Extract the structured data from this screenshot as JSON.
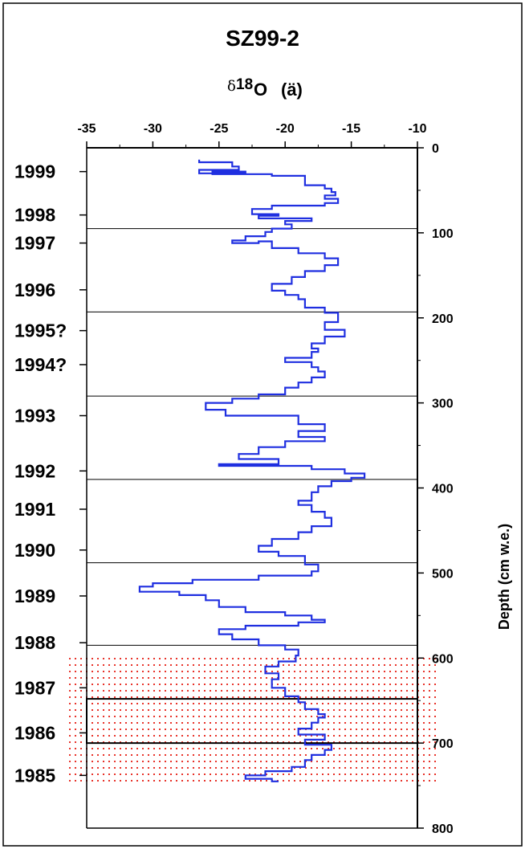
{
  "chart_data": {
    "type": "line",
    "title": "SZ99-2",
    "xlabel_delta": "δ",
    "xlabel_main": "18",
    "xlabel_o": "O",
    "xlabel_unit": "(ä)",
    "ylabel": "Depth (cm w.e.)",
    "xlim": [
      -35,
      -10
    ],
    "ylim": [
      0,
      800
    ],
    "x_ticks": [
      "-35",
      "-30",
      "-25",
      "-20",
      "-15",
      "-10"
    ],
    "y_ticks": [
      "0",
      "100",
      "200",
      "300",
      "400",
      "500",
      "600",
      "700",
      "800"
    ],
    "year_boundaries_depth": [
      95,
      193,
      292,
      390,
      488,
      585
    ],
    "year_labels": [
      {
        "label": "1999",
        "depth": 28
      },
      {
        "label": "1998",
        "depth": 79
      },
      {
        "label": "1997",
        "depth": 112
      },
      {
        "label": "1996",
        "depth": 167
      },
      {
        "label": "1995?",
        "depth": 215
      },
      {
        "label": "1994?",
        "depth": 255
      },
      {
        "label": "1993",
        "depth": 315
      },
      {
        "label": "1992",
        "depth": 380
      },
      {
        "label": "1991",
        "depth": 425
      },
      {
        "label": "1990",
        "depth": 473
      },
      {
        "label": "1989",
        "depth": 527
      },
      {
        "label": "1988",
        "depth": 582
      },
      {
        "label": "1987",
        "depth": 635
      },
      {
        "label": "1986",
        "depth": 688
      },
      {
        "label": "1985",
        "depth": 738
      }
    ],
    "highlight_region_depth": [
      595,
      750
    ],
    "box_region_depth": [
      648,
      700
    ],
    "colors": {
      "series": "#1f2fe0",
      "highlight": "#e8332a",
      "lines": "#000000"
    },
    "series": [
      {
        "points": [
          [
            -26.5,
            14
          ],
          [
            -26.5,
            17
          ],
          [
            -24,
            17
          ],
          [
            -24,
            22
          ],
          [
            -23.5,
            22
          ],
          [
            -23.5,
            26
          ],
          [
            -26.5,
            26
          ],
          [
            -26.5,
            30
          ],
          [
            -23,
            30
          ],
          [
            -23,
            28
          ],
          [
            -25.5,
            28
          ],
          [
            -25.5,
            31
          ],
          [
            -21,
            31
          ],
          [
            -21,
            33
          ],
          [
            -18.5,
            33
          ],
          [
            -18.5,
            44
          ],
          [
            -17,
            44
          ],
          [
            -17,
            48
          ],
          [
            -16.5,
            48
          ],
          [
            -16.5,
            52
          ],
          [
            -16.2,
            52
          ],
          [
            -16.2,
            56
          ],
          [
            -17,
            56
          ],
          [
            -17,
            60
          ],
          [
            -16,
            60
          ],
          [
            -16,
            65
          ],
          [
            -17,
            65
          ],
          [
            -17,
            68
          ],
          [
            -21,
            68
          ],
          [
            -21,
            72
          ],
          [
            -22.5,
            72
          ],
          [
            -22.5,
            78
          ],
          [
            -20.5,
            78
          ],
          [
            -20.5,
            80
          ],
          [
            -22,
            80
          ],
          [
            -22,
            83
          ],
          [
            -18,
            83
          ],
          [
            -18,
            86
          ],
          [
            -20,
            86
          ],
          [
            -20,
            90
          ],
          [
            -19.5,
            90
          ],
          [
            -19.5,
            95
          ],
          [
            -21,
            95
          ],
          [
            -21,
            99
          ],
          [
            -21.5,
            99
          ],
          [
            -21.5,
            104
          ],
          [
            -23,
            104
          ],
          [
            -23,
            109
          ],
          [
            -24,
            109
          ],
          [
            -24,
            112
          ],
          [
            -22,
            112
          ],
          [
            -22,
            110
          ],
          [
            -21,
            110
          ],
          [
            -21,
            118
          ],
          [
            -19,
            118
          ],
          [
            -19,
            124
          ],
          [
            -17,
            124
          ],
          [
            -17,
            130
          ],
          [
            -16,
            130
          ],
          [
            -16,
            138
          ],
          [
            -17,
            138
          ],
          [
            -17,
            145
          ],
          [
            -18.5,
            145
          ],
          [
            -18.5,
            152
          ],
          [
            -19.5,
            152
          ],
          [
            -19.5,
            160
          ],
          [
            -21,
            160
          ],
          [
            -21,
            168
          ],
          [
            -20,
            168
          ],
          [
            -20,
            173
          ],
          [
            -19,
            173
          ],
          [
            -19,
            178
          ],
          [
            -18.5,
            178
          ],
          [
            -18.5,
            188
          ],
          [
            -17,
            188
          ],
          [
            -17,
            194
          ],
          [
            -16,
            194
          ],
          [
            -16,
            205
          ],
          [
            -17,
            205
          ],
          [
            -17,
            214
          ],
          [
            -15.5,
            214
          ],
          [
            -15.5,
            222
          ],
          [
            -17,
            222
          ],
          [
            -17,
            230
          ],
          [
            -18,
            230
          ],
          [
            -18,
            236
          ],
          [
            -17.5,
            236
          ],
          [
            -17.5,
            240
          ],
          [
            -18,
            240
          ],
          [
            -18,
            247
          ],
          [
            -20,
            247
          ],
          [
            -20,
            252
          ],
          [
            -18,
            252
          ],
          [
            -18,
            258
          ],
          [
            -17.5,
            258
          ],
          [
            -17.5,
            263
          ],
          [
            -17,
            263
          ],
          [
            -17,
            270
          ],
          [
            -18,
            270
          ],
          [
            -18,
            276
          ],
          [
            -19,
            276
          ],
          [
            -19,
            282
          ],
          [
            -20,
            282
          ],
          [
            -20,
            290
          ],
          [
            -22,
            290
          ],
          [
            -22,
            295
          ],
          [
            -24,
            295
          ],
          [
            -24,
            300
          ],
          [
            -26,
            300
          ],
          [
            -26,
            308
          ],
          [
            -24.5,
            308
          ],
          [
            -24.5,
            315
          ],
          [
            -19,
            315
          ],
          [
            -19,
            325
          ],
          [
            -17,
            325
          ],
          [
            -17,
            333
          ],
          [
            -19,
            333
          ],
          [
            -19,
            340
          ],
          [
            -17,
            340
          ],
          [
            -17,
            345
          ],
          [
            -20,
            345
          ],
          [
            -20,
            352
          ],
          [
            -22,
            352
          ],
          [
            -22,
            360
          ],
          [
            -23.5,
            360
          ],
          [
            -23.5,
            366
          ],
          [
            -20.5,
            366
          ],
          [
            -20.5,
            372
          ],
          [
            -25,
            372
          ],
          [
            -25,
            374
          ],
          [
            -18,
            374
          ],
          [
            -18,
            378
          ],
          [
            -15.5,
            378
          ],
          [
            -15.5,
            383
          ],
          [
            -14,
            383
          ],
          [
            -14,
            388
          ],
          [
            -15,
            388
          ],
          [
            -15,
            392
          ],
          [
            -16.5,
            392
          ],
          [
            -16.5,
            398
          ],
          [
            -17.5,
            398
          ],
          [
            -17.5,
            405
          ],
          [
            -18,
            405
          ],
          [
            -18,
            415
          ],
          [
            -19,
            415
          ],
          [
            -19,
            420
          ],
          [
            -18,
            420
          ],
          [
            -18,
            428
          ],
          [
            -17,
            428
          ],
          [
            -17,
            435
          ],
          [
            -16.5,
            435
          ],
          [
            -16.5,
            445
          ],
          [
            -18,
            445
          ],
          [
            -18,
            452
          ],
          [
            -19,
            452
          ],
          [
            -19,
            460
          ],
          [
            -21,
            460
          ],
          [
            -21,
            468
          ],
          [
            -22,
            468
          ],
          [
            -22,
            475
          ],
          [
            -20.5,
            475
          ],
          [
            -20.5,
            480
          ],
          [
            -18.5,
            480
          ],
          [
            -18.5,
            490
          ],
          [
            -17.5,
            490
          ],
          [
            -17.5,
            498
          ],
          [
            -18,
            498
          ],
          [
            -18,
            503
          ],
          [
            -22,
            503
          ],
          [
            -22,
            508
          ],
          [
            -27,
            508
          ],
          [
            -27,
            512
          ],
          [
            -30,
            512
          ],
          [
            -30,
            516
          ],
          [
            -31,
            516
          ],
          [
            -31,
            522
          ],
          [
            -28,
            522
          ],
          [
            -28,
            526
          ],
          [
            -26,
            526
          ],
          [
            -26,
            532
          ],
          [
            -25,
            532
          ],
          [
            -25,
            540
          ],
          [
            -23,
            540
          ],
          [
            -23,
            546
          ],
          [
            -20,
            546
          ],
          [
            -20,
            550
          ],
          [
            -18,
            550
          ],
          [
            -18,
            555
          ],
          [
            -17,
            555
          ],
          [
            -17,
            558
          ],
          [
            -19,
            558
          ],
          [
            -19,
            562
          ],
          [
            -23,
            562
          ],
          [
            -23,
            566
          ],
          [
            -25,
            566
          ],
          [
            -25,
            572
          ],
          [
            -24,
            572
          ],
          [
            -24,
            578
          ],
          [
            -22,
            578
          ],
          [
            -22,
            585
          ],
          [
            -20,
            585
          ],
          [
            -20,
            590
          ],
          [
            -19,
            590
          ],
          [
            -19,
            597
          ],
          [
            -19.2,
            597
          ],
          [
            -19.2,
            604
          ],
          [
            -20.5,
            604
          ],
          [
            -20.5,
            610
          ],
          [
            -21.5,
            610
          ],
          [
            -21.5,
            618
          ],
          [
            -20.5,
            618
          ],
          [
            -20.5,
            625
          ],
          [
            -21,
            625
          ],
          [
            -21,
            635
          ],
          [
            -20,
            635
          ],
          [
            -20,
            645
          ],
          [
            -19,
            645
          ],
          [
            -19,
            652
          ],
          [
            -18.5,
            652
          ],
          [
            -18.5,
            660
          ],
          [
            -17.5,
            660
          ],
          [
            -17.5,
            666
          ],
          [
            -17,
            666
          ],
          [
            -17,
            670
          ],
          [
            -17.5,
            670
          ],
          [
            -17.5,
            676
          ],
          [
            -18,
            676
          ],
          [
            -18,
            683
          ],
          [
            -19,
            683
          ],
          [
            -19,
            690
          ],
          [
            -17,
            690
          ],
          [
            -17,
            696
          ],
          [
            -18.5,
            696
          ],
          [
            -18.5,
            702
          ],
          [
            -16.5,
            702
          ],
          [
            -16.5,
            708
          ],
          [
            -17,
            708
          ],
          [
            -17,
            714
          ],
          [
            -18,
            714
          ],
          [
            -18,
            720
          ],
          [
            -18.5,
            720
          ],
          [
            -18.5,
            728
          ],
          [
            -19.5,
            728
          ],
          [
            -19.5,
            733
          ],
          [
            -21.5,
            733
          ],
          [
            -21.5,
            738
          ],
          [
            -23,
            738
          ],
          [
            -23,
            742
          ],
          [
            -21,
            742
          ],
          [
            -21,
            745
          ],
          [
            -20.5,
            745
          ]
        ]
      }
    ]
  }
}
